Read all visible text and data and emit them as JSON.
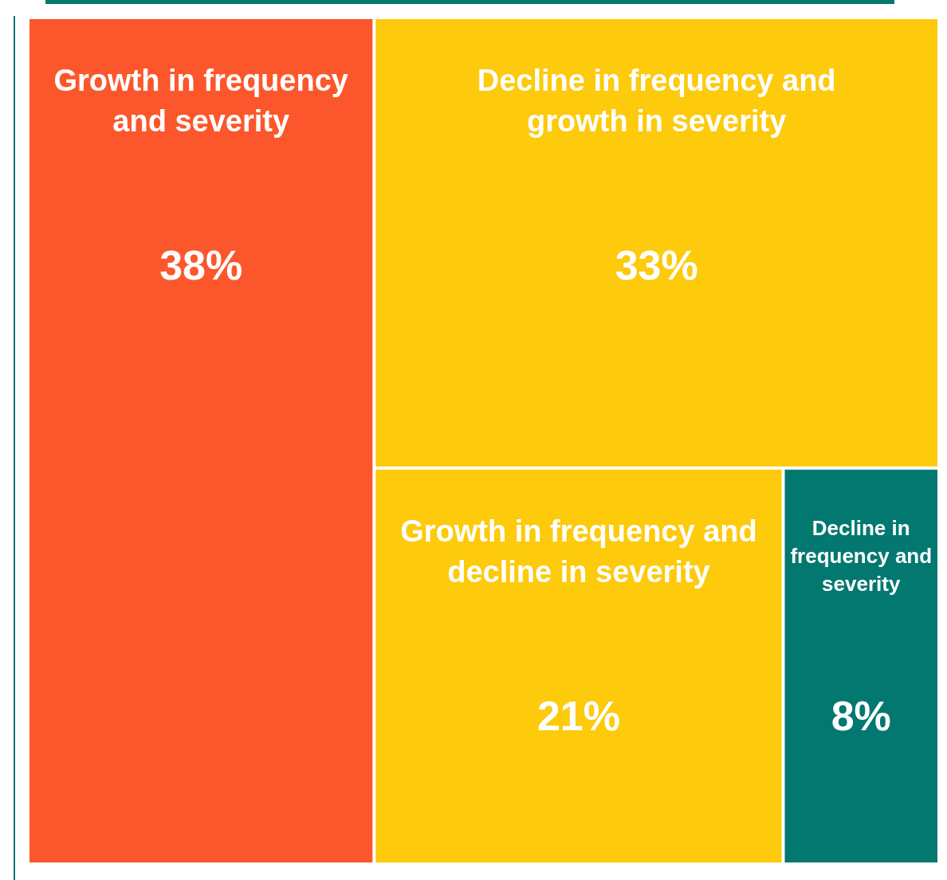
{
  "chart_data": {
    "type": "other",
    "categories": [
      "Growth in frequency and severity",
      "Decline in frequency and growth in severity",
      "Growth in frequency and decline in severity",
      "Decline in frequency and severity"
    ],
    "values": [
      38,
      33,
      21,
      8
    ],
    "value_labels": [
      "38%",
      "33%",
      "21%",
      "8%"
    ],
    "colors": [
      "#fc572c",
      "#fdca0c",
      "#fdca0c",
      "#037870"
    ]
  }
}
